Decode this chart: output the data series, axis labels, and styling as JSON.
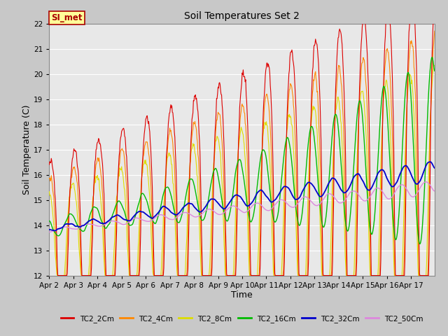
{
  "title": "Soil Temperatures Set 2",
  "xlabel": "Time",
  "ylabel": "Soil Temperature (C)",
  "ylim": [
    12.0,
    22.0
  ],
  "yticks": [
    12.0,
    13.0,
    14.0,
    15.0,
    16.0,
    17.0,
    18.0,
    19.0,
    20.0,
    21.0,
    22.0
  ],
  "xtick_labels": [
    "Apr 2",
    "Apr 3",
    "Apr 4",
    "Apr 5",
    "Apr 6",
    "Apr 7",
    "Apr 8",
    "Apr 9",
    "Apr 10",
    "Apr 11",
    "Apr 12",
    "Apr 13",
    "Apr 14",
    "Apr 15",
    "Apr 16",
    "Apr 17"
  ],
  "colors": {
    "TC2_2Cm": "#dd0000",
    "TC2_4Cm": "#ff8800",
    "TC2_8Cm": "#dddd00",
    "TC2_16Cm": "#00bb00",
    "TC2_32Cm": "#0000cc",
    "TC2_50Cm": "#dd88dd"
  },
  "si_met_label": "SI_met",
  "si_met_bg": "#ffff99",
  "si_met_edge": "#aa0000",
  "fig_bg": "#c8c8c8",
  "ax_bg": "#e8e8e8",
  "grid_color": "#ffffff",
  "n_days": 16,
  "pts_per_day": 48
}
